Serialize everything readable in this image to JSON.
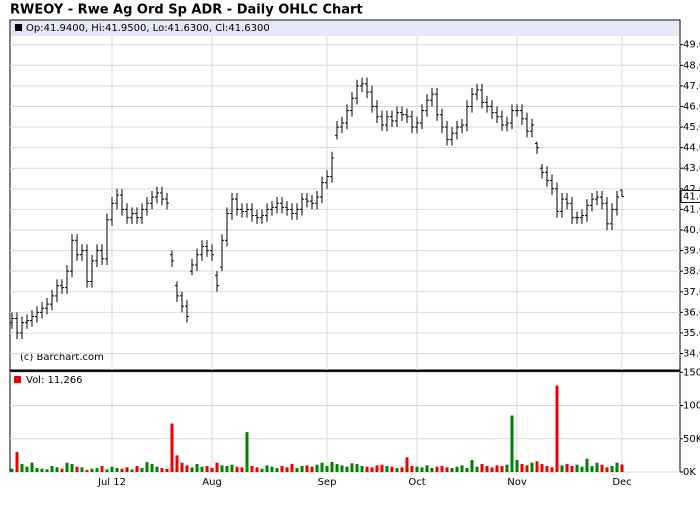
{
  "chart_data": {
    "type": "ohlc",
    "title": "RWEOY - Rwe Ag Ord Sp ADR - Daily OHLC Chart",
    "legend_text": "Op:41.9400, Hi:41.9500, Lo:41.6300, Cl:41.6300",
    "volume_legend": "Vol: 11,266",
    "copyright": "(c) Barchart.com",
    "last_price": {
      "value": 41.63,
      "label": "41.6300"
    },
    "bar_color": "#000000",
    "up_color": "#008000",
    "down_color": "#ee0000",
    "grid": true,
    "xlim": [
      -0.4,
      133.6
    ],
    "xticks": [
      {
        "value": 20,
        "label": "Jul 12"
      },
      {
        "value": 40,
        "label": "Aug"
      },
      {
        "value": 63,
        "label": "Sep"
      },
      {
        "value": 81,
        "label": "Oct"
      },
      {
        "value": 101,
        "label": "Nov"
      },
      {
        "value": 122,
        "label": "Dec"
      }
    ],
    "ylim": [
      33.2,
      50.2
    ],
    "yticks": [
      {
        "value": 34,
        "label": "34.0000"
      },
      {
        "value": 35,
        "label": "35.0000"
      },
      {
        "value": 36,
        "label": "36.0000"
      },
      {
        "value": 37,
        "label": "37.0000"
      },
      {
        "value": 38,
        "label": "38.0000"
      },
      {
        "value": 39,
        "label": "39.0000"
      },
      {
        "value": 40,
        "label": "40.0000"
      },
      {
        "value": 41,
        "label": "41.0000"
      },
      {
        "value": 42,
        "label": "42.0000"
      },
      {
        "value": 43,
        "label": "43.0000"
      },
      {
        "value": 44,
        "label": "44.0000"
      },
      {
        "value": 45,
        "label": "45.0000"
      },
      {
        "value": 46,
        "label": "46.0000"
      },
      {
        "value": 47,
        "label": "47.0000"
      },
      {
        "value": 48,
        "label": "48.0000"
      },
      {
        "value": 49,
        "label": "49.0000"
      }
    ],
    "y2lim": [
      0,
      152000
    ],
    "y2ticks": [
      {
        "value": 0,
        "label": "0K"
      },
      {
        "value": 50000,
        "label": "50K"
      },
      {
        "value": 100000,
        "label": "100K"
      },
      {
        "value": 150000,
        "label": "150K"
      }
    ],
    "open": [
      35.5,
      35.7,
      35.0,
      35.5,
      35.6,
      35.8,
      36.0,
      36.2,
      36.4,
      36.8,
      37.3,
      37.2,
      38.0,
      39.5,
      38.8,
      39.0,
      37.5,
      38.5,
      39.0,
      38.6,
      40.5,
      41.3,
      41.7,
      41.0,
      40.6,
      40.8,
      40.6,
      41.0,
      41.3,
      41.6,
      41.8,
      41.5,
      38.8,
      37.3,
      36.8,
      36.3,
      38.0,
      38.3,
      38.8,
      39.2,
      39.0,
      37.8,
      38.2,
      39.5,
      40.8,
      41.5,
      41.0,
      40.9,
      41.0,
      40.7,
      40.6,
      40.7,
      41.0,
      41.1,
      41.3,
      41.1,
      41.0,
      40.8,
      41.0,
      41.5,
      41.4,
      41.3,
      41.6,
      42.3,
      42.6,
      44.6,
      45.0,
      45.2,
      45.8,
      46.4,
      47.0,
      47.1,
      46.7,
      46.0,
      45.5,
      45.1,
      45.5,
      45.3,
      45.7,
      45.6,
      45.5,
      45.0,
      45.2,
      45.8,
      46.3,
      46.6,
      45.6,
      45.0,
      44.4,
      44.7,
      45.0,
      45.1,
      46.0,
      46.6,
      46.8,
      46.2,
      46.0,
      45.7,
      45.5,
      45.1,
      45.2,
      45.8,
      45.8,
      45.4,
      44.8,
      44.2,
      43.0,
      42.8,
      42.4,
      42.0,
      40.9,
      41.5,
      41.3,
      40.6,
      40.6,
      40.7,
      41.2,
      41.5,
      41.6,
      41.3,
      40.3,
      41.0,
      41.94
    ],
    "high": [
      36.0,
      36.0,
      35.8,
      35.9,
      36.1,
      36.3,
      36.5,
      36.7,
      37.1,
      37.6,
      37.6,
      38.3,
      39.8,
      39.8,
      39.3,
      39.3,
      38.8,
      39.3,
      39.3,
      40.8,
      41.6,
      42.0,
      42.0,
      41.3,
      41.1,
      41.1,
      41.3,
      41.6,
      41.9,
      42.1,
      42.1,
      41.8,
      39.0,
      37.5,
      37.0,
      36.6,
      38.6,
      39.1,
      39.5,
      39.5,
      39.3,
      38.0,
      39.8,
      41.1,
      41.8,
      41.8,
      41.3,
      41.3,
      41.3,
      41.0,
      41.0,
      41.3,
      41.4,
      41.6,
      41.6,
      41.4,
      41.3,
      41.3,
      41.8,
      41.8,
      41.7,
      41.9,
      42.6,
      42.9,
      43.8,
      45.3,
      45.5,
      46.1,
      46.7,
      47.3,
      47.4,
      47.4,
      47.0,
      46.3,
      45.8,
      45.8,
      45.8,
      46.0,
      46.0,
      45.9,
      45.8,
      45.5,
      46.1,
      46.6,
      46.9,
      46.9,
      45.9,
      45.3,
      45.0,
      45.3,
      45.4,
      46.3,
      46.9,
      47.1,
      47.1,
      46.5,
      46.3,
      46.0,
      45.8,
      45.5,
      46.1,
      46.1,
      46.1,
      45.7,
      45.4,
      44.3,
      43.2,
      43.1,
      42.7,
      42.3,
      41.8,
      41.8,
      41.6,
      40.9,
      41.0,
      41.5,
      41.8,
      41.9,
      41.9,
      41.6,
      41.3,
      41.9,
      41.95
    ],
    "low": [
      35.2,
      34.7,
      34.7,
      35.2,
      35.3,
      35.5,
      35.7,
      35.9,
      36.1,
      36.5,
      36.9,
      36.9,
      37.7,
      38.5,
      38.5,
      37.2,
      37.2,
      38.2,
      38.3,
      38.3,
      40.2,
      41.0,
      40.7,
      40.3,
      40.3,
      40.3,
      40.3,
      40.7,
      41.0,
      41.3,
      41.2,
      41.0,
      38.2,
      36.5,
      36.0,
      35.5,
      37.8,
      38.0,
      38.5,
      38.7,
      38.5,
      37.0,
      38.0,
      39.2,
      40.5,
      40.7,
      40.6,
      40.6,
      40.4,
      40.3,
      40.3,
      40.4,
      40.7,
      40.8,
      40.8,
      40.7,
      40.5,
      40.5,
      40.7,
      41.1,
      41.0,
      41.0,
      41.3,
      42.0,
      42.3,
      44.4,
      44.7,
      44.9,
      45.5,
      46.1,
      46.7,
      46.4,
      45.7,
      45.2,
      44.8,
      44.8,
      45.0,
      45.0,
      45.3,
      45.2,
      44.7,
      44.7,
      44.9,
      45.5,
      46.0,
      45.3,
      44.7,
      44.1,
      44.1,
      44.4,
      44.7,
      44.8,
      45.7,
      46.3,
      45.9,
      45.7,
      45.4,
      45.2,
      44.8,
      44.8,
      44.9,
      45.5,
      45.1,
      44.5,
      44.5,
      43.7,
      42.5,
      42.1,
      41.7,
      40.6,
      40.6,
      41.0,
      40.3,
      40.3,
      40.3,
      40.4,
      40.9,
      41.2,
      41.0,
      40.0,
      40.0,
      40.7,
      41.63
    ],
    "close": [
      35.7,
      35.0,
      35.5,
      35.6,
      35.8,
      36.0,
      36.2,
      36.4,
      36.8,
      37.3,
      37.2,
      38.0,
      39.5,
      38.8,
      39.0,
      37.5,
      38.5,
      39.0,
      38.6,
      40.5,
      41.3,
      41.7,
      41.0,
      40.6,
      40.8,
      40.6,
      41.0,
      41.3,
      41.6,
      41.8,
      41.5,
      41.3,
      38.5,
      36.8,
      36.3,
      35.8,
      38.3,
      38.8,
      39.2,
      39.0,
      38.8,
      37.3,
      39.5,
      40.8,
      41.5,
      41.0,
      40.9,
      41.0,
      40.7,
      40.6,
      40.7,
      41.0,
      41.1,
      41.3,
      41.1,
      41.0,
      40.8,
      41.0,
      41.5,
      41.4,
      41.3,
      41.6,
      42.3,
      42.6,
      43.5,
      45.0,
      45.2,
      45.8,
      46.4,
      47.0,
      47.1,
      46.7,
      46.0,
      45.5,
      45.1,
      45.5,
      45.3,
      45.7,
      45.6,
      45.5,
      45.0,
      45.2,
      45.8,
      46.3,
      46.6,
      45.6,
      45.0,
      44.4,
      44.7,
      45.0,
      45.1,
      46.0,
      46.6,
      46.8,
      46.2,
      46.0,
      45.7,
      45.5,
      45.1,
      45.2,
      45.8,
      45.8,
      45.4,
      44.8,
      45.1,
      44.0,
      42.8,
      42.4,
      42.0,
      40.9,
      41.5,
      41.3,
      40.6,
      40.6,
      40.7,
      41.2,
      41.5,
      41.6,
      41.3,
      40.3,
      41.0,
      41.6,
      41.63
    ],
    "volume": [
      5000,
      30000,
      12000,
      8000,
      14000,
      6000,
      5000,
      4000,
      9000,
      7000,
      5000,
      14000,
      12000,
      8000,
      7000,
      3000,
      5000,
      6000,
      9000,
      4000,
      8000,
      6000,
      5000,
      7000,
      4000,
      9000,
      6000,
      15000,
      12000,
      8000,
      6000,
      5000,
      73000,
      25000,
      14000,
      10000,
      7000,
      12000,
      8000,
      9000,
      6000,
      14000,
      10000,
      9000,
      11000,
      8000,
      7000,
      60000,
      9000,
      7000,
      5000,
      10000,
      8000,
      6000,
      9000,
      7000,
      12000,
      6000,
      9000,
      10000,
      8000,
      11000,
      14000,
      9000,
      15000,
      12000,
      10000,
      8000,
      13000,
      12000,
      9000,
      8000,
      7000,
      10000,
      11000,
      9000,
      8000,
      6000,
      7000,
      22000,
      9000,
      8000,
      7000,
      10000,
      6000,
      8000,
      9000,
      7000,
      6000,
      8000,
      10000,
      6000,
      18000,
      8000,
      12000,
      9000,
      7000,
      10000,
      9000,
      11000,
      85000,
      18000,
      12000,
      10000,
      14000,
      16000,
      12000,
      9000,
      7000,
      130000,
      10000,
      12000,
      9000,
      11000,
      8000,
      20000,
      9000,
      14000,
      11000,
      7000,
      9000,
      14000,
      11266
    ]
  }
}
